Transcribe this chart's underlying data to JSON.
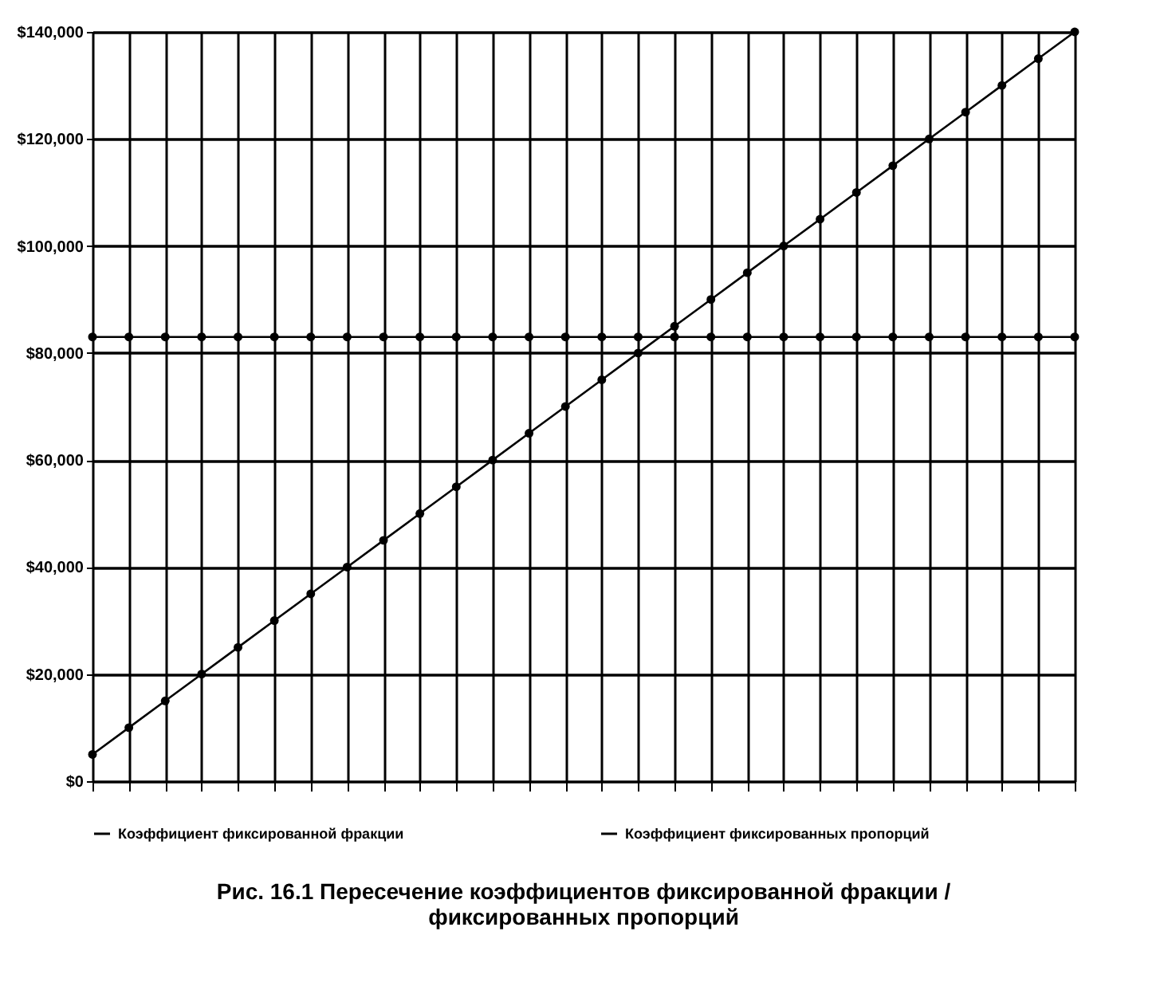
{
  "chart_data": {
    "type": "line",
    "title": "Рис. 16.1  Пересечение коэффициентов фиксированной фракции /\nфиксированных пропорций",
    "categories": [
      null,
      null,
      null,
      null,
      null,
      null,
      null,
      null,
      null,
      null,
      null,
      null,
      null,
      null,
      null,
      null,
      null,
      null,
      null,
      null,
      null,
      null,
      null,
      null,
      null,
      null,
      null,
      null
    ],
    "series": [
      {
        "name": "Коэффициент фиксированной фракции",
        "color": "#000000",
        "values": [
          5000,
          10000,
          15000,
          20000,
          25000,
          30000,
          35000,
          40000,
          45000,
          50000,
          55000,
          60000,
          65000,
          70000,
          75000,
          80000,
          85000,
          90000,
          95000,
          100000,
          105000,
          110000,
          115000,
          120000,
          125000,
          130000,
          135000,
          140000
        ]
      },
      {
        "name": "Коэффициент фиксированных пропорций",
        "color": "#000000",
        "values": [
          83000,
          83000,
          83000,
          83000,
          83000,
          83000,
          83000,
          83000,
          83000,
          83000,
          83000,
          83000,
          83000,
          83000,
          83000,
          83000,
          83000,
          83000,
          83000,
          83000,
          83000,
          83000,
          83000,
          83000,
          83000,
          83000,
          83000,
          83000
        ]
      }
    ],
    "ylim": [
      0,
      140000
    ],
    "yticks": [
      {
        "value": 0,
        "label": "$0"
      },
      {
        "value": 20000,
        "label": "$20,000"
      },
      {
        "value": 40000,
        "label": "$40,000"
      },
      {
        "value": 60000,
        "label": "$60,000"
      },
      {
        "value": 80000,
        "label": "$80,000"
      },
      {
        "value": 100000,
        "label": "$100,000"
      },
      {
        "value": 120000,
        "label": "$120,000"
      },
      {
        "value": 140000,
        "label": "$140,000"
      }
    ],
    "tick_labels": "y",
    "grid": true,
    "legend": "bottom",
    "marker": "circle",
    "line_style": "solid"
  }
}
